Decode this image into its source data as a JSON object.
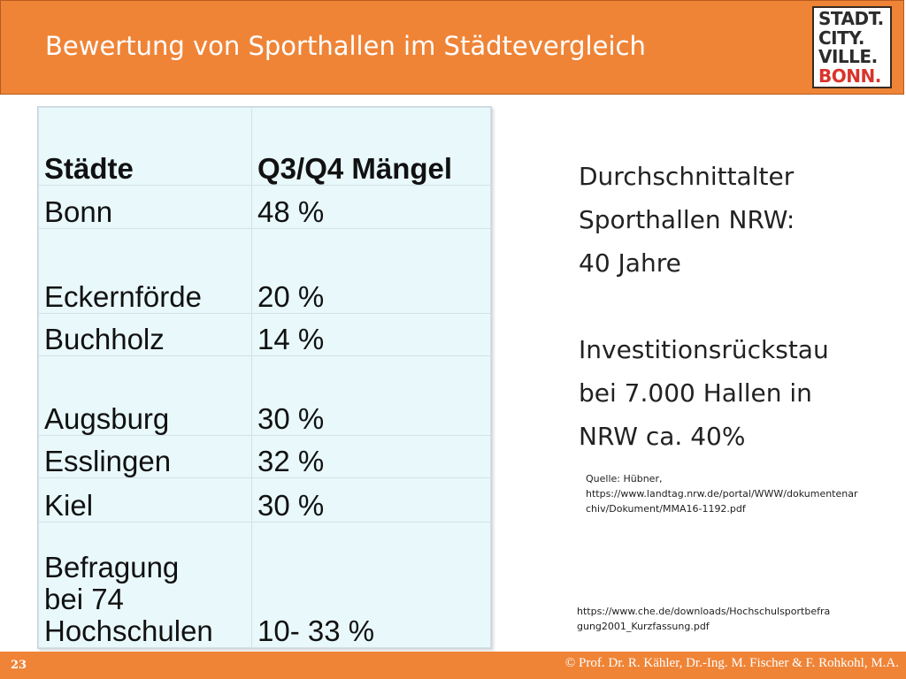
{
  "header": {
    "title": "Bewertung von Sporthallen im Städtevergleich",
    "logo": {
      "line1": "STADT.",
      "line2": "CITY.",
      "line3": "VILLE.",
      "line4": "BONN.",
      "accent_color": "#d9342b"
    }
  },
  "table": {
    "headers": [
      "Städte",
      "Q3/Q4 Mängel"
    ],
    "rows": [
      {
        "city": "Bonn",
        "value": "48 %"
      },
      {
        "city": "Eckernförde",
        "value": "20 %"
      },
      {
        "city": "Buchholz",
        "value": "14 %"
      },
      {
        "city": "Augsburg",
        "value": "30 %"
      },
      {
        "city": "Esslingen",
        "value": "32 %"
      },
      {
        "city": "Kiel",
        "value": "30 %"
      },
      {
        "city_line1": "Befragung",
        "city_line2": "bei 74",
        "city_line3": "Hochschulen",
        "value": "10- 33 %"
      }
    ]
  },
  "sidebar": {
    "line1": "Durchschnittalter",
    "line2": "Sporthallen NRW:",
    "line3": "40 Jahre",
    "line4": "Investitionsrückstau",
    "line5": "bei 7.000 Hallen in",
    "line6": "NRW  ca. 40%"
  },
  "sources": {
    "source1_line1": "Quelle: Hübner,",
    "source1_line2": "https://www.landtag.nrw.de/portal/WWW/dokumentenar",
    "source1_line3": "chiv/Dokument/MMA16-1192.pdf",
    "source2_line1": "https://www.che.de/downloads/Hochschulsportbefra",
    "source2_line2": "gung2001_Kurzfassung.pdf"
  },
  "footer": {
    "page_number": "23",
    "copyright": "© Prof. Dr. R. Kähler, Dr.-Ing. M. Fischer & F. Rohkohl, M.A."
  },
  "colors": {
    "brand_orange": "#ef8437",
    "table_bg": "#e8f8fb"
  }
}
